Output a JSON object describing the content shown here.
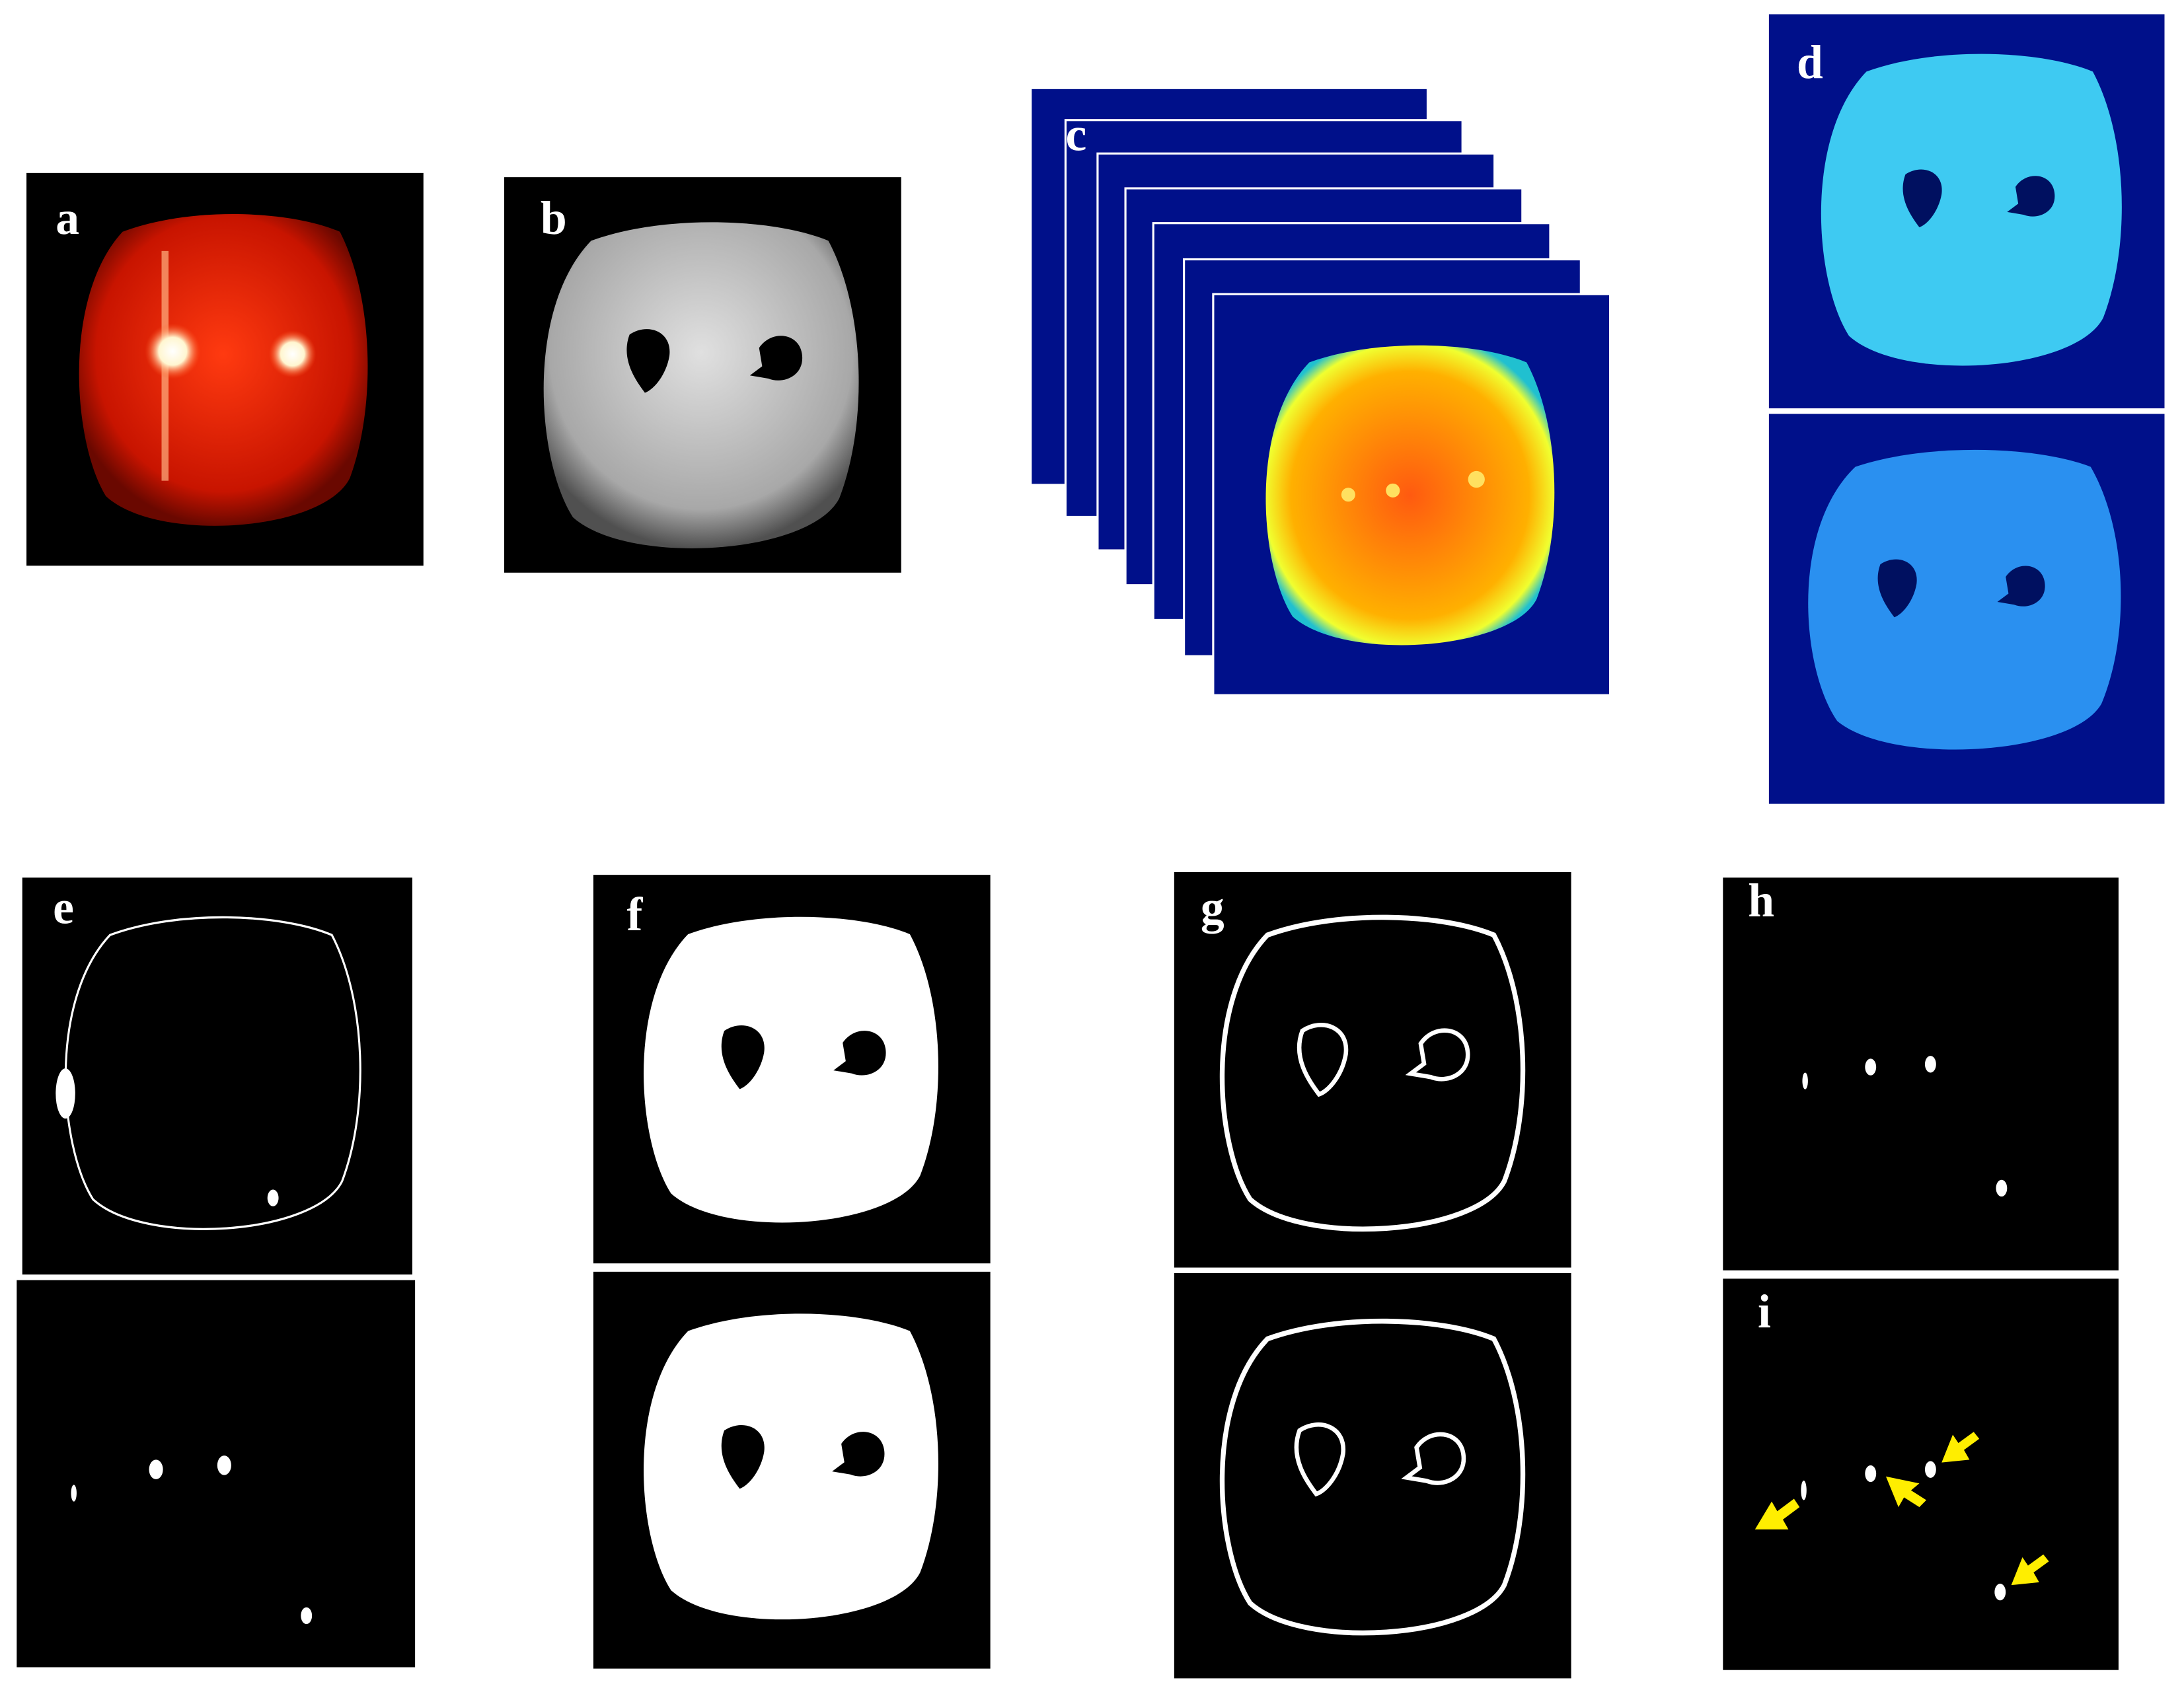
{
  "panels": [
    {
      "label": "a"
    },
    {
      "label": "b"
    },
    {
      "label": "c"
    },
    {
      "label": "d"
    },
    {
      "label": "e"
    },
    {
      "label": "f"
    },
    {
      "label": "g"
    },
    {
      "label": "h"
    },
    {
      "label": "i"
    }
  ]
}
